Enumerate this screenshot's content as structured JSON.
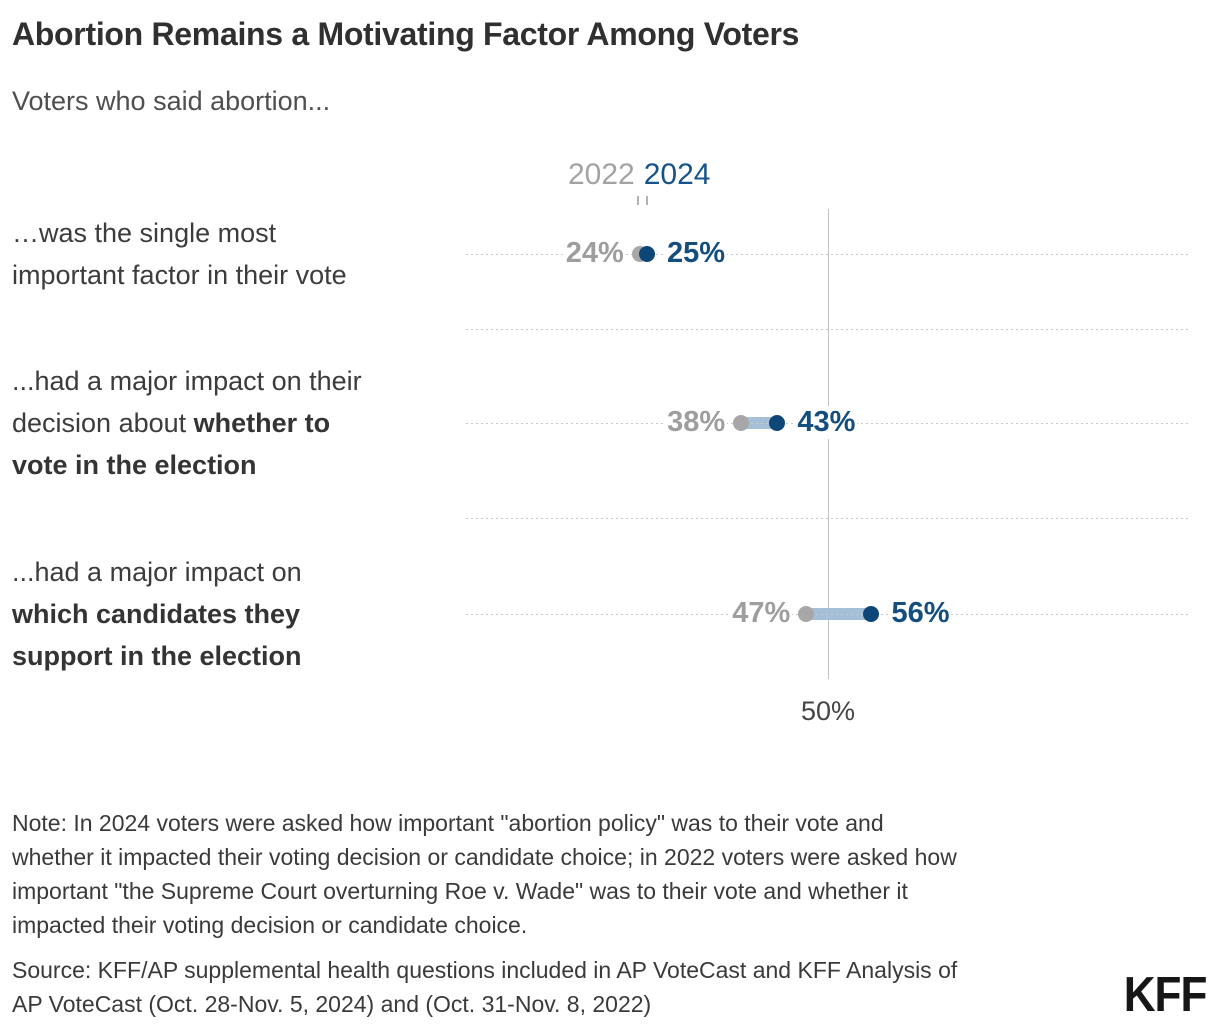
{
  "header": {
    "title": "Abortion Remains a Motivating Factor Among Voters",
    "subtitle": "Voters who said abortion..."
  },
  "rows": [
    {
      "label_normal": "…was the single most\nimportant factor in their vote",
      "label_bold": ""
    },
    {
      "label_normal": "...had a major impact on their\ndecision about ",
      "label_bold": "whether to\nvote in the election"
    },
    {
      "label_normal": "...had a major impact on\n",
      "label_bold": "which candidates they\nsupport in the election"
    }
  ],
  "chart_data": {
    "type": "dumbbell",
    "title": "Abortion Remains a Motivating Factor Among Voters",
    "subtitle": "Voters who said abortion...",
    "categories": [
      "…was the single most important factor in their vote",
      "...had a major impact on their decision about whether to vote in the election",
      "...had a major impact on which candidates they support in the election"
    ],
    "series": [
      {
        "name": "2022",
        "values": [
          24,
          38,
          47
        ]
      },
      {
        "name": "2024",
        "values": [
          25,
          43,
          56
        ]
      }
    ],
    "value_suffix": "%",
    "xlim": [
      0,
      100
    ],
    "reference_line": {
      "value": 50,
      "label": "50%"
    },
    "grid": "dotted horizontal lines at each row and between rows",
    "legend_position": "top-center",
    "colors": {
      "dot_2022": "#a7a7a7",
      "dot_2024": "#0d4778",
      "connector": "#a6bfd8",
      "text_2022": "#9e9e9e",
      "text_2024": "#134e7e",
      "legend_2022": "#a3a3a3",
      "legend_2024": "#17538b"
    }
  },
  "footer": {
    "note": "Note: In 2024 voters were asked how important \"abortion policy\" was to their vote and\nwhether it impacted their voting decision or candidate choice; in 2022 voters were asked how\nimportant \"the Supreme Court overturning Roe v. Wade\" was to their vote and whether it\nimpacted their voting decision or candidate choice.",
    "source": "Source: KFF/AP supplemental health questions included in AP VoteCast and KFF Analysis of\nAP VoteCast (Oct. 28-Nov. 5, 2024) and (Oct. 31-Nov. 8, 2022)",
    "logo": "KFF"
  }
}
